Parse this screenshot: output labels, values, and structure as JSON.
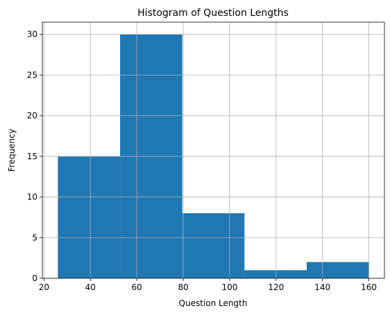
{
  "chart_data": {
    "type": "histogram",
    "title": "Histogram of Question Lengths",
    "x_label": "Question Length",
    "y_label": "Frequency",
    "bins": [
      26,
      52.8,
      79.6,
      106.4,
      133.2,
      160
    ],
    "values": [
      15,
      30,
      8,
      1,
      2
    ],
    "color": "#1f77b4",
    "xlim": [
      19.3,
      166.7
    ],
    "xticks": [
      20,
      40,
      60,
      80,
      100,
      120,
      140,
      160
    ],
    "ylim": [
      0,
      31.5
    ],
    "yticks": [
      0,
      5,
      10,
      15,
      20,
      25,
      30
    ],
    "grid": true
  }
}
